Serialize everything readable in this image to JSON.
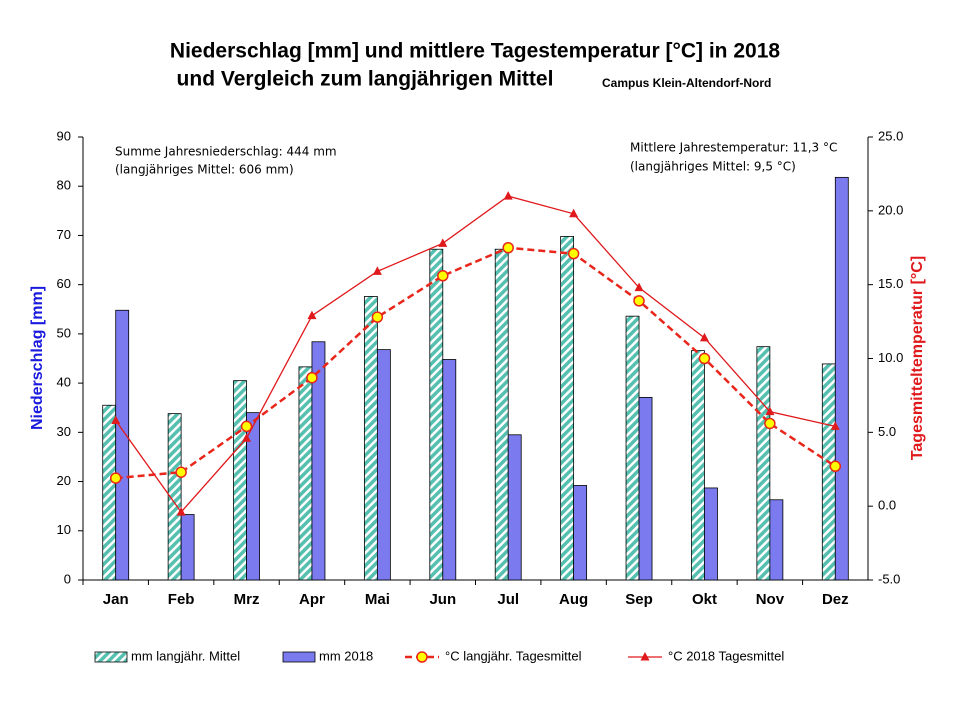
{
  "chart_data": {
    "type": "bar-line",
    "title": [
      "Niederschlag [mm] und mittlere Tagestemperatur [°C] in 2018",
      "und Vergleich zum langjährigen Mittel"
    ],
    "subtitle": "Campus Klein-Altendorf-Nord",
    "annotations_left": [
      "Summe Jahresniederschlag:  444 mm",
      "(langjähriges Mittel:  606 mm)"
    ],
    "annotations_right": [
      "Mittlere Jahrestemperatur:  11,3 °C",
      "(langjähriges Mittel:  9,5 °C)"
    ],
    "ylabel": "Niederschlag [mm]",
    "y2label": "Tagesmitteltemperatur [°C]",
    "categories": [
      "Jan",
      "Feb",
      "Mrz",
      "Apr",
      "Mai",
      "Jun",
      "Jul",
      "Aug",
      "Sep",
      "Okt",
      "Nov",
      "Dez"
    ],
    "ylim": [
      0,
      90
    ],
    "yticks": [
      0,
      10,
      20,
      30,
      40,
      50,
      60,
      70,
      80,
      90
    ],
    "y2lim": [
      -5,
      25
    ],
    "y2ticks": [
      {
        "value": -5,
        "label": "-5.0"
      },
      {
        "value": 0,
        "label": "0.0"
      },
      {
        "value": 5,
        "label": "5.0"
      },
      {
        "value": 10,
        "label": "10.0"
      },
      {
        "value": 15,
        "label": "15.0"
      },
      {
        "value": 20,
        "label": "20.0"
      },
      {
        "value": 25,
        "label": "25.0"
      }
    ],
    "series": [
      {
        "name": "mm langjähr. Mittel",
        "kind": "bar",
        "pattern": "hatch",
        "color": "#56c0b0",
        "values": [
          35.5,
          33.8,
          40.5,
          43.3,
          57.6,
          67.2,
          67.2,
          69.8,
          53.6,
          46.6,
          47.4,
          43.9
        ]
      },
      {
        "name": "mm 2018",
        "kind": "bar",
        "color": "#7b7bef",
        "values": [
          54.8,
          13.3,
          34.0,
          48.4,
          46.8,
          44.8,
          29.5,
          19.2,
          37.1,
          18.7,
          16.3,
          81.8
        ]
      },
      {
        "name": "°C langjähr. Tagesmittel",
        "kind": "line",
        "axis": "y2",
        "dashed": true,
        "marker": "circle",
        "marker_color": "#ffff00",
        "color": "#e8261b",
        "values": [
          1.9,
          2.3,
          5.4,
          8.7,
          12.8,
          15.6,
          17.5,
          17.1,
          13.9,
          10.0,
          5.6,
          2.7
        ]
      },
      {
        "name": "°C 2018 Tagesmittel",
        "kind": "line",
        "axis": "y2",
        "marker": "triangle",
        "color": "#e0191c",
        "values": [
          5.8,
          -0.4,
          4.6,
          12.9,
          15.9,
          17.8,
          21.0,
          19.8,
          14.8,
          11.4,
          6.4,
          5.4
        ]
      }
    ]
  }
}
